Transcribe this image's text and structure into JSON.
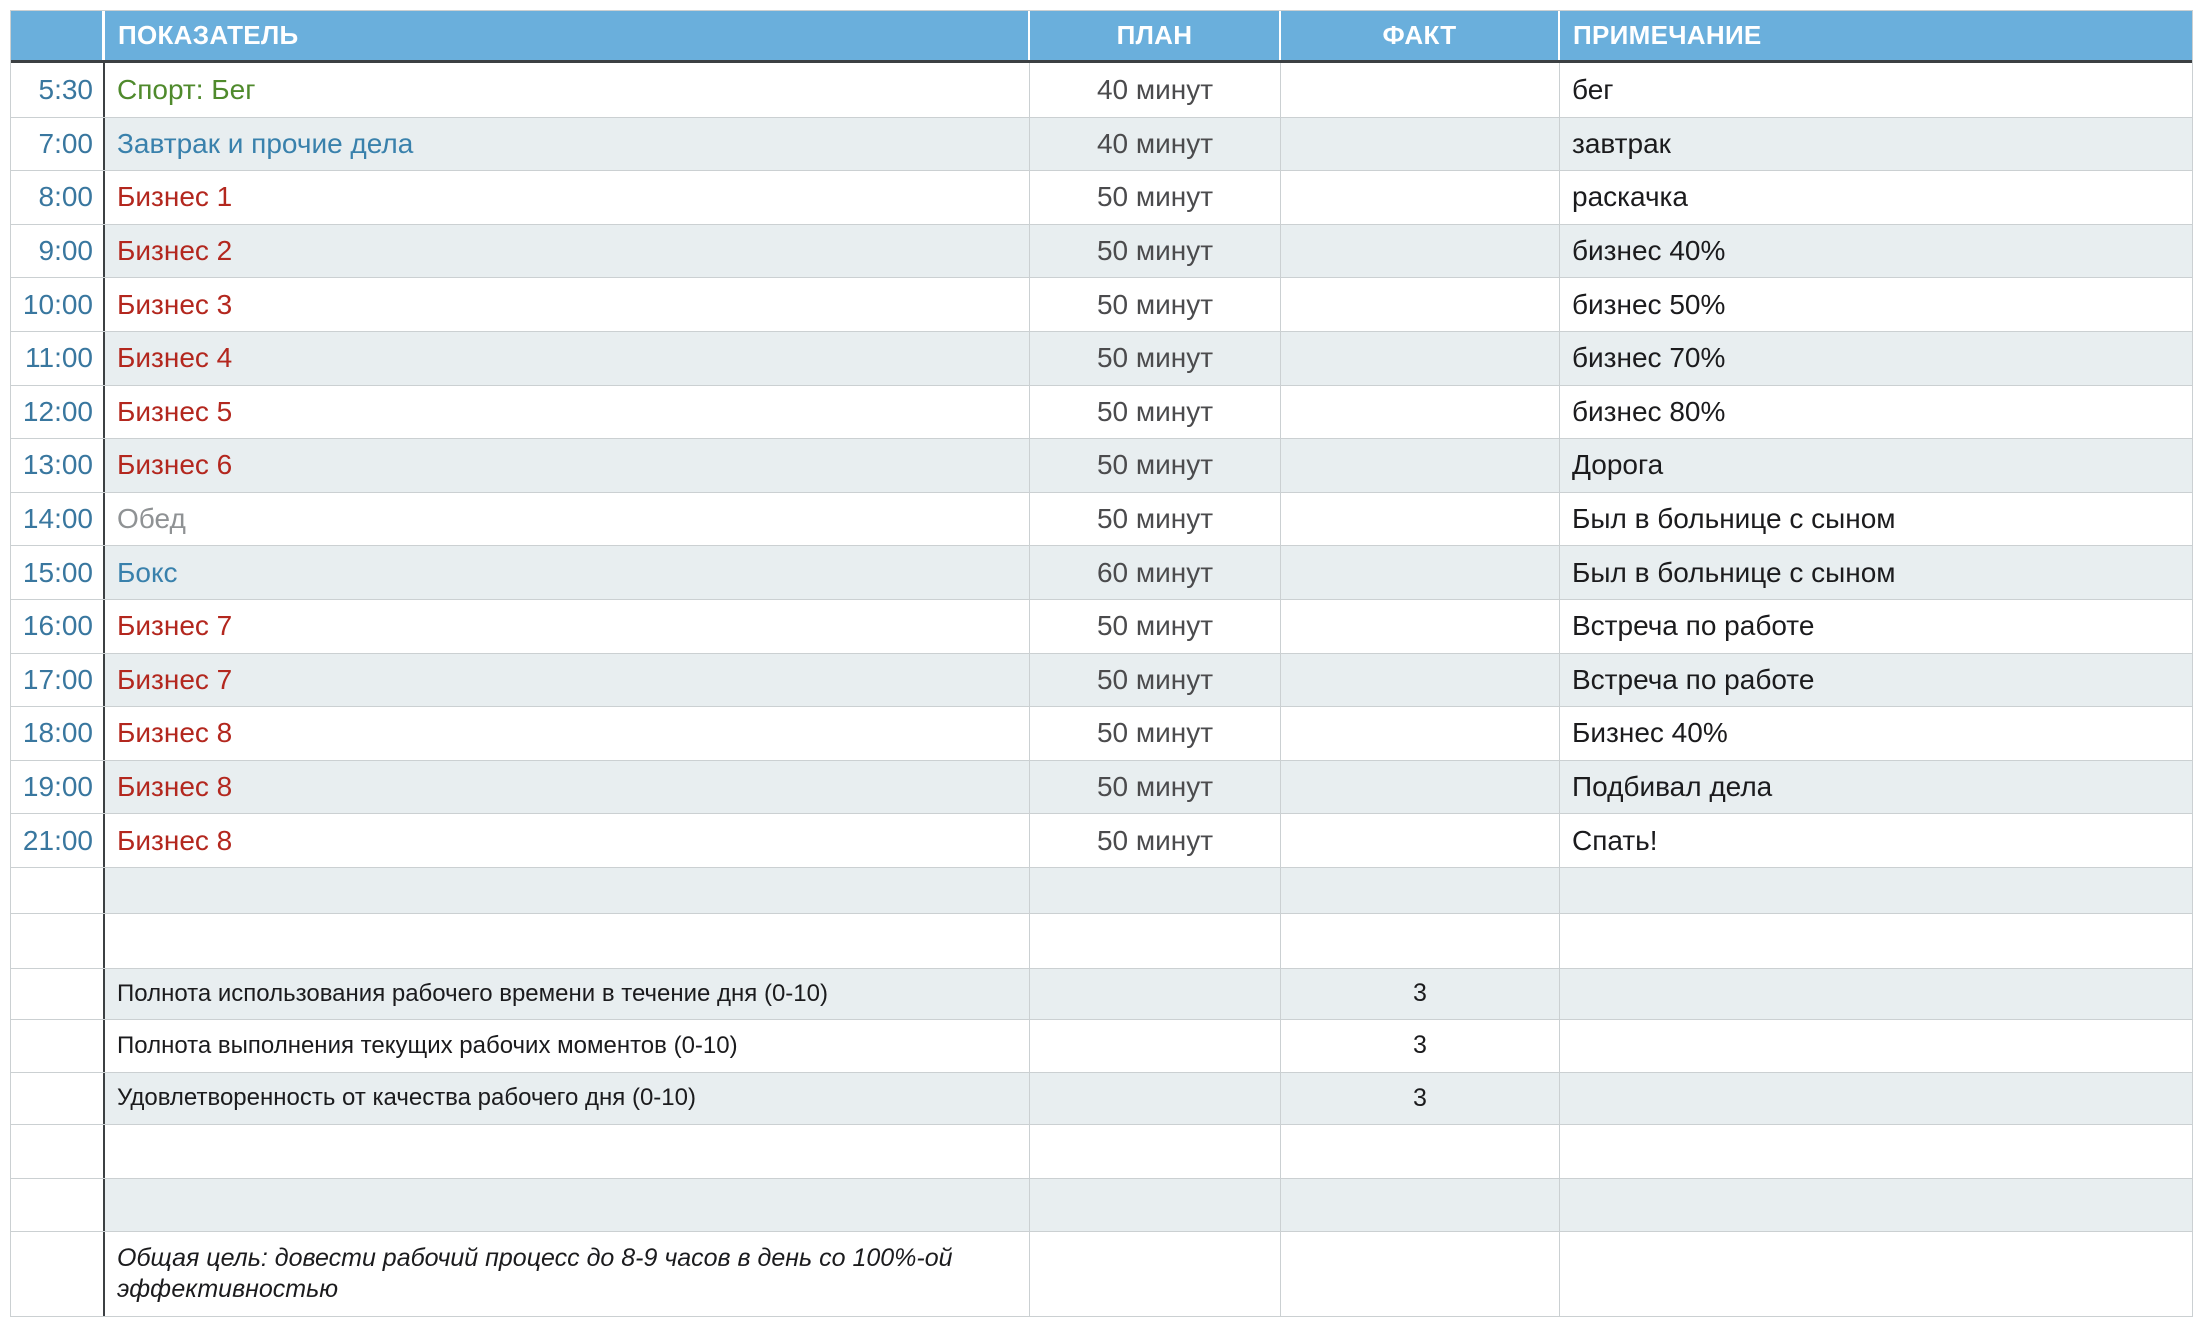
{
  "palette": {
    "header_bg": "#6aafdc",
    "header_text": "#ffffff",
    "row_alt_bg": "#e8eef0",
    "grid_line": "#cbd0d2",
    "dark_line": "#3c4043",
    "time_text": "#39779f",
    "green": "#4f8a2c",
    "blue": "#3981ac",
    "red": "#b3271e",
    "gray": "#8f9294",
    "plan_text": "#4b4b4d",
    "note_text": "#1b1b1d"
  },
  "header": {
    "indicator": "ПОКАЗАТЕЛЬ",
    "plan": "ПЛАН",
    "fact": "ФАКТ",
    "note": "ПРИМЕЧАНИЕ"
  },
  "rows": [
    {
      "time": "5:30",
      "indicator": "Спорт: Бег",
      "plan": "40 минут",
      "fact": "",
      "note": "бег"
    },
    {
      "time": "7:00",
      "indicator": "Завтрак и прочие дела",
      "plan": "40 минут",
      "fact": "",
      "note": "завтрак"
    },
    {
      "time": "8:00",
      "indicator": "Бизнес 1",
      "plan": "50 минут",
      "fact": "",
      "note": "раскачка"
    },
    {
      "time": "9:00",
      "indicator": "Бизнес 2",
      "plan": "50 минут",
      "fact": "",
      "note": "бизнес 40%"
    },
    {
      "time": "10:00",
      "indicator": "Бизнес 3",
      "plan": "50 минут",
      "fact": "",
      "note": "бизнес 50%"
    },
    {
      "time": "11:00",
      "indicator": "Бизнес 4",
      "plan": "50 минут",
      "fact": "",
      "note": "бизнес 70%"
    },
    {
      "time": "12:00",
      "indicator": "Бизнес 5",
      "plan": "50 минут",
      "fact": "",
      "note": "бизнес 80%"
    },
    {
      "time": "13:00",
      "indicator": "Бизнес 6",
      "plan": "50 минут",
      "fact": "",
      "note": "Дорога"
    },
    {
      "time": "14:00",
      "indicator": "Обед",
      "plan": "50 минут",
      "fact": "",
      "note": "Был в больнице с сыном"
    },
    {
      "time": "15:00",
      "indicator": "Бокс",
      "plan": "60 минут",
      "fact": "",
      "note": "Был в больнице с сыном"
    },
    {
      "time": "16:00",
      "indicator": "Бизнес 7",
      "plan": "50 минут",
      "fact": "",
      "note": "Встреча по работе"
    },
    {
      "time": "17:00",
      "indicator": "Бизнес 7",
      "plan": "50 минут",
      "fact": "",
      "note": "Встреча по работе"
    },
    {
      "time": "18:00",
      "indicator": "Бизнес 8",
      "plan": "50 минут",
      "fact": "",
      "note": "Бизнес 40%"
    },
    {
      "time": "19:00",
      "indicator": "Бизнес 8",
      "plan": "50 минут",
      "fact": "",
      "note": "Подбивал дела"
    },
    {
      "time": "21:00",
      "indicator": "Бизнес 8",
      "plan": "50 минут",
      "fact": "",
      "note": "Спать!"
    }
  ],
  "summary": [
    {
      "label": "Полнота использования рабочего времени в течение дня (0-10)",
      "fact": "3"
    },
    {
      "label": "Полнота выполнения текущих рабочих моментов (0-10)",
      "fact": "3"
    },
    {
      "label": "Удовлетворенность от качества рабочего дня (0-10)",
      "fact": "3"
    }
  ],
  "goal": "Общая цель: довести рабочий процесс до 8-9 часов в день со 100%-ой эффективностью"
}
